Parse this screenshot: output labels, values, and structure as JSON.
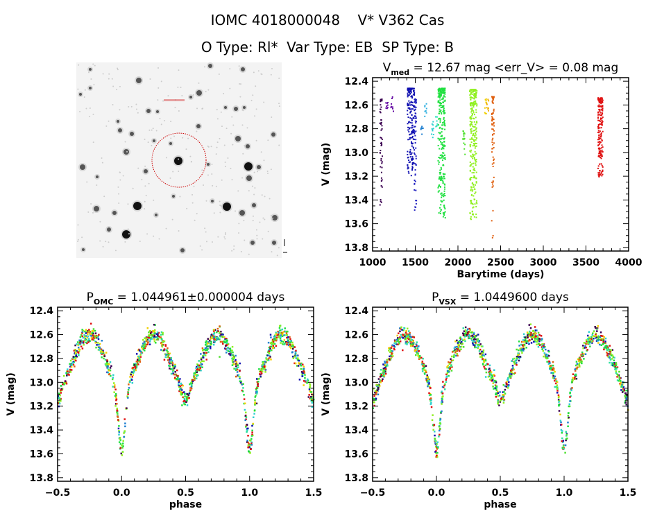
{
  "header": {
    "title": "IOMC 4018000048    V* V362 Cas",
    "subtitle": "O Type: Rl*  Var Type: EB  SP Type: B"
  },
  "finder_image": {
    "type": "image",
    "description_label": "star field finder chart",
    "marker_color": "#cc0000"
  },
  "chart_data": [
    {
      "type": "scatter",
      "title_main": "V",
      "title_sub": "med",
      "title_rest": " = 12.67 mag <err_V> = 0.08 mag",
      "xlabel": "Barytime (days)",
      "ylabel": "V (mag)",
      "xlim": [
        1000,
        4000
      ],
      "ylim": [
        13.83,
        12.37
      ],
      "y_inverted": true,
      "xticks": [
        "1000",
        "1500",
        "2000",
        "2500",
        "3000",
        "3500",
        "4000"
      ],
      "yticks": [
        "12.4",
        "12.6",
        "12.8",
        "13.0",
        "13.2",
        "13.4",
        "13.6",
        "13.8"
      ],
      "groups": [
        {
          "barytime": 1100,
          "mag_range": [
            12.55,
            13.45
          ],
          "color": "#3a0050"
        },
        {
          "barytime": 1170,
          "mag_range": [
            12.58,
            12.63
          ],
          "color": "#6000a0"
        },
        {
          "barytime": 1230,
          "mag_range": [
            12.53,
            12.67
          ],
          "color": "#6000a0"
        },
        {
          "barytime": 1450,
          "mag_range": [
            12.46,
            13.2
          ],
          "color": "#1010b0"
        },
        {
          "barytime": 1500,
          "mag_range": [
            12.55,
            13.5
          ],
          "color": "#2020c0"
        },
        {
          "barytime": 1580,
          "mag_range": [
            12.78,
            12.85
          ],
          "color": "#2080d0"
        },
        {
          "barytime": 1620,
          "mag_range": [
            12.58,
            12.7
          ],
          "color": "#30b0e0"
        },
        {
          "barytime": 1700,
          "mag_range": [
            12.74,
            12.9
          ],
          "color": "#30d0d0"
        },
        {
          "barytime": 1750,
          "mag_range": [
            12.7,
            12.8
          ],
          "color": "#30e0c0"
        },
        {
          "barytime": 1810,
          "mag_range": [
            12.46,
            13.55
          ],
          "color": "#20e040"
        },
        {
          "barytime": 2070,
          "mag_range": [
            12.82,
            13.07
          ],
          "color": "#50e030"
        },
        {
          "barytime": 2180,
          "mag_range": [
            12.47,
            13.57
          ],
          "color": "#90f020"
        },
        {
          "barytime": 2320,
          "mag_range": [
            12.55,
            12.7
          ],
          "color": "#f0d000"
        },
        {
          "barytime": 2350,
          "mag_range": [
            12.55,
            12.65
          ],
          "color": "#f0b000"
        },
        {
          "barytime": 2410,
          "mag_range": [
            12.53,
            13.72
          ],
          "color": "#e06010"
        },
        {
          "barytime": 3670,
          "mag_range": [
            12.54,
            13.23
          ],
          "color": "#e01010"
        }
      ]
    },
    {
      "type": "scatter",
      "title_main": "P",
      "title_sub": "OMC",
      "title_rest": " = 1.044961±0.000004 days",
      "xlabel": "phase",
      "ylabel": "V (mag)",
      "xlim": [
        -0.5,
        1.5
      ],
      "ylim": [
        13.83,
        12.37
      ],
      "y_inverted": true,
      "xticks": [
        "−0.5",
        "0.0",
        "0.5",
        "1.0",
        "1.5"
      ],
      "yticks": [
        "12.4",
        "12.6",
        "12.8",
        "13.0",
        "13.2",
        "13.4",
        "13.6",
        "13.8"
      ],
      "light_curve": {
        "max_mag": 12.6,
        "primary_min_phase": 0.0,
        "primary_min_mag": 13.55,
        "secondary_min_phase": 0.5,
        "secondary_min_mag": 13.15
      }
    },
    {
      "type": "scatter",
      "title_main": "P",
      "title_sub": "VSX",
      "title_rest": " = 1.0449600 days",
      "xlabel": "phase",
      "ylabel": "V (mag)",
      "xlim": [
        -0.5,
        1.5
      ],
      "ylim": [
        13.83,
        12.37
      ],
      "y_inverted": true,
      "xticks": [
        "−0.5",
        "0.0",
        "0.5",
        "1.0",
        "1.5"
      ],
      "yticks": [
        "12.4",
        "12.6",
        "12.8",
        "13.0",
        "13.2",
        "13.4",
        "13.6",
        "13.8"
      ],
      "light_curve": {
        "max_mag": 12.6,
        "primary_min_phase": 0.0,
        "primary_min_mag": 13.55,
        "secondary_min_phase": 0.5,
        "secondary_min_mag": 13.15
      }
    }
  ]
}
